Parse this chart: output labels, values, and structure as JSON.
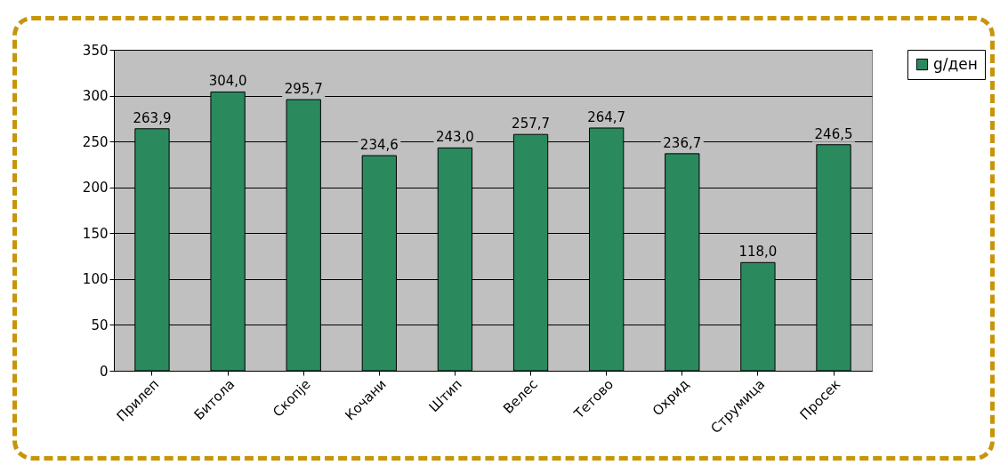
{
  "chart_data": {
    "type": "bar",
    "categories": [
      "Прилеп",
      "Битола",
      "Скопје",
      "Кочани",
      "Штип",
      "Велес",
      "Тетово",
      "Охрид",
      "Струмица",
      "Просек"
    ],
    "series": [
      {
        "name": "g/ден",
        "color": "#2a8a5e",
        "values": [
          263.9,
          304.0,
          295.7,
          234.6,
          243.0,
          257.7,
          264.7,
          236.7,
          118.0,
          246.5
        ],
        "value_labels": [
          "263,9",
          "304,0",
          "295,7",
          "234,6",
          "243,0",
          "257,7",
          "264,7",
          "236,7",
          "118,0",
          "246,5"
        ]
      }
    ],
    "ylim": [
      0,
      350
    ],
    "yticks": [
      0,
      50,
      100,
      150,
      200,
      250,
      300,
      350
    ],
    "grid": "y",
    "legend": "right"
  }
}
